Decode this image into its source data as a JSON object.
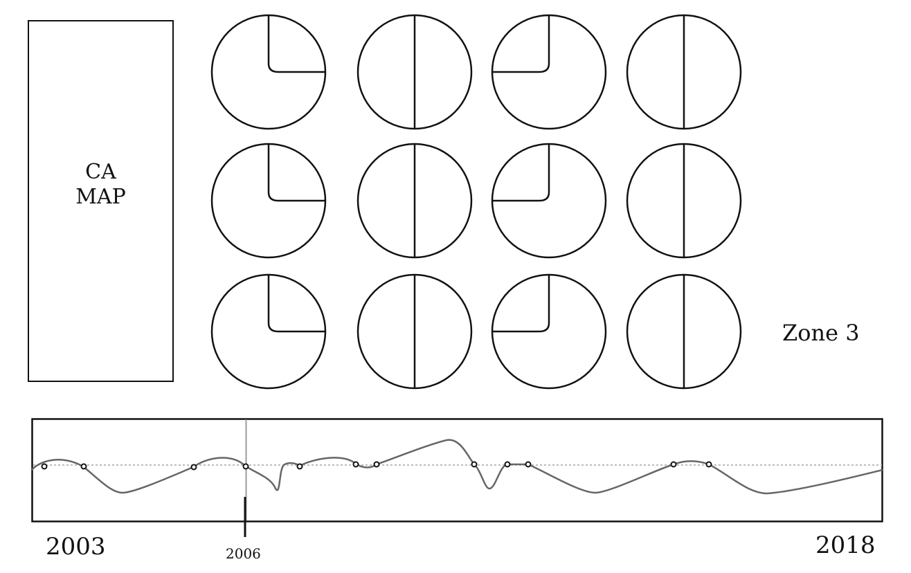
{
  "map": {
    "label_line1": "CA",
    "label_line2": "MAP"
  },
  "zone": {
    "label": "Zone 3"
  },
  "dials": {
    "rows": 3,
    "columns": [
      {
        "type": "quarter-right"
      },
      {
        "type": "half"
      },
      {
        "type": "quarter-left"
      },
      {
        "type": "half"
      }
    ]
  },
  "timeline": {
    "start_label": "2003",
    "end_label": "2018",
    "marker_label": "2006",
    "colors": {
      "line": "#666666",
      "baseline": "#bbbbbb",
      "marker": "#999999",
      "frame": "#111111"
    }
  }
}
